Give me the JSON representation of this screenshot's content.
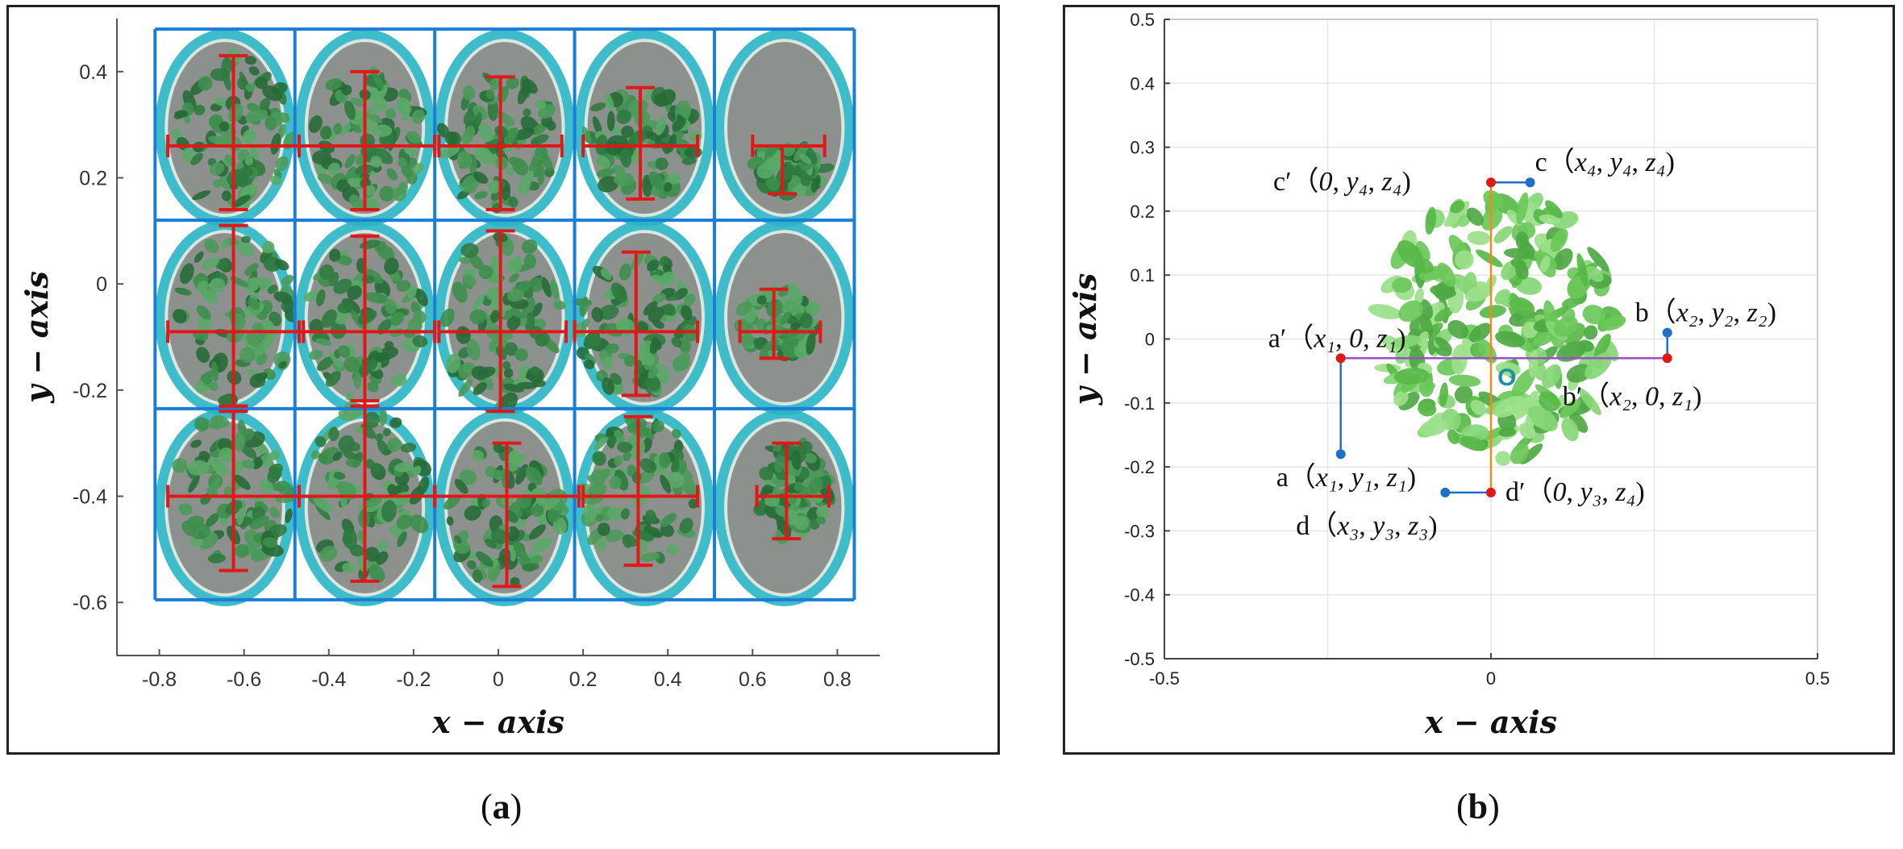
{
  "panels": {
    "a": {
      "caption_open": "(",
      "caption_letter": "a",
      "caption_close": ")"
    },
    "b": {
      "caption_open": "(",
      "caption_letter": "b",
      "caption_close": ")"
    }
  },
  "chart_data": [
    {
      "type": "scatter",
      "panel": "a",
      "title": "",
      "xlabel": "x − axis",
      "ylabel": "y − axis",
      "xlim": [
        -0.9,
        0.9
      ],
      "ylim": [
        -0.7,
        0.5
      ],
      "xticks": [
        -0.8,
        -0.6,
        -0.4,
        -0.2,
        0,
        0.2,
        0.4,
        0.6,
        0.8
      ],
      "xtick_labels": [
        "-0.8",
        "-0.6",
        "-0.4",
        "-0.2",
        "0",
        "0.2",
        "0.4",
        "0.6",
        "0.8"
      ],
      "yticks": [
        0.4,
        0.2,
        0,
        -0.2,
        -0.4,
        -0.6
      ],
      "ytick_labels": [
        "0.4",
        "0.2",
        "0",
        "-0.2",
        "-0.4",
        "-0.6"
      ],
      "grid": false,
      "grid_region": {
        "x_bounds": [
          -0.81,
          -0.48,
          -0.15,
          0.18,
          0.51,
          0.84
        ],
        "y_bounds": [
          0.48,
          0.12,
          -0.235,
          -0.595
        ],
        "color": "#1a7fd4"
      },
      "pots": [
        {
          "row": 0,
          "col": 0,
          "cx": -0.625,
          "cy": 0.26,
          "x_extent": [
            -0.78,
            -0.47
          ],
          "y_extent": [
            0.14,
            0.43
          ]
        },
        {
          "row": 0,
          "col": 1,
          "cx": -0.315,
          "cy": 0.26,
          "x_extent": [
            -0.47,
            -0.15
          ],
          "y_extent": [
            0.14,
            0.4
          ]
        },
        {
          "row": 0,
          "col": 2,
          "cx": 0.005,
          "cy": 0.26,
          "x_extent": [
            -0.14,
            0.15
          ],
          "y_extent": [
            0.14,
            0.39
          ]
        },
        {
          "row": 0,
          "col": 3,
          "cx": 0.335,
          "cy": 0.26,
          "x_extent": [
            0.2,
            0.47
          ],
          "y_extent": [
            0.16,
            0.37
          ]
        },
        {
          "row": 0,
          "col": 4,
          "cx": 0.67,
          "cy": 0.26,
          "x_extent": [
            0.6,
            0.77
          ],
          "y_extent": [
            0.17,
            0.26
          ]
        },
        {
          "row": 1,
          "col": 0,
          "cx": -0.625,
          "cy": -0.09,
          "x_extent": [
            -0.78,
            -0.46
          ],
          "y_extent": [
            -0.23,
            0.11
          ]
        },
        {
          "row": 1,
          "col": 1,
          "cx": -0.315,
          "cy": -0.09,
          "x_extent": [
            -0.47,
            -0.15
          ],
          "y_extent": [
            -0.23,
            0.09
          ]
        },
        {
          "row": 1,
          "col": 2,
          "cx": 0.005,
          "cy": -0.09,
          "x_extent": [
            -0.14,
            0.16
          ],
          "y_extent": [
            -0.24,
            0.1
          ]
        },
        {
          "row": 1,
          "col": 3,
          "cx": 0.325,
          "cy": -0.09,
          "x_extent": [
            0.18,
            0.47
          ],
          "y_extent": [
            -0.21,
            0.06
          ]
        },
        {
          "row": 1,
          "col": 4,
          "cx": 0.65,
          "cy": -0.09,
          "x_extent": [
            0.57,
            0.76
          ],
          "y_extent": [
            -0.14,
            -0.01
          ]
        },
        {
          "row": 2,
          "col": 0,
          "cx": -0.625,
          "cy": -0.4,
          "x_extent": [
            -0.78,
            -0.47
          ],
          "y_extent": [
            -0.54,
            -0.24
          ]
        },
        {
          "row": 2,
          "col": 1,
          "cx": -0.315,
          "cy": -0.4,
          "x_extent": [
            -0.47,
            -0.15
          ],
          "y_extent": [
            -0.56,
            -0.22
          ]
        },
        {
          "row": 2,
          "col": 2,
          "cx": 0.02,
          "cy": -0.4,
          "x_extent": [
            -0.15,
            0.19
          ],
          "y_extent": [
            -0.57,
            -0.3
          ]
        },
        {
          "row": 2,
          "col": 3,
          "cx": 0.33,
          "cy": -0.4,
          "x_extent": [
            0.2,
            0.47
          ],
          "y_extent": [
            -0.53,
            -0.25
          ]
        },
        {
          "row": 2,
          "col": 4,
          "cx": 0.68,
          "cy": -0.4,
          "x_extent": [
            0.61,
            0.78
          ],
          "y_extent": [
            -0.48,
            -0.3
          ]
        }
      ],
      "colors": {
        "frame": "#1a7fd4",
        "crosshair": "#e01818",
        "pot_rim": "#2bb5c4",
        "foliage": "#3d8f4e",
        "soil": "#4a4a48"
      }
    },
    {
      "type": "scatter",
      "panel": "b",
      "title": "",
      "xlabel": "x − axis",
      "ylabel": "y − axis",
      "xlim": [
        -0.5,
        0.5
      ],
      "ylim": [
        -0.5,
        0.5
      ],
      "xticks": [
        -0.5,
        0,
        0.5
      ],
      "xtick_labels": [
        "-0.5",
        "0",
        "0.5"
      ],
      "yticks": [
        0.5,
        0.4,
        0.3,
        0.2,
        0.1,
        0,
        -0.1,
        -0.2,
        -0.3,
        -0.4,
        -0.5
      ],
      "ytick_labels": [
        "0.5",
        "0.4",
        "0.3",
        "0.2",
        "0.1",
        "0",
        "-0.1",
        "-0.2",
        "-0.3",
        "-0.4",
        "-0.5"
      ],
      "grid": true,
      "points": [
        {
          "id": "a",
          "label": "a",
          "coords": [
            "x₁",
            "y₁",
            "z₁"
          ],
          "x": -0.23,
          "y": -0.18,
          "color": "#1f6fc4"
        },
        {
          "id": "a'",
          "label": "a′",
          "coords": [
            "x₁",
            "0",
            "z₁"
          ],
          "x": -0.23,
          "y": -0.03,
          "color": "#e01818"
        },
        {
          "id": "b",
          "label": "b",
          "coords": [
            "x₂",
            "y₂",
            "z₂"
          ],
          "x": 0.27,
          "y": 0.01,
          "color": "#1f6fc4"
        },
        {
          "id": "b'",
          "label": "b′",
          "coords": [
            "x₂",
            "0",
            "z₁"
          ],
          "x": 0.27,
          "y": -0.03,
          "color": "#e01818"
        },
        {
          "id": "c",
          "label": "c",
          "coords": [
            "x₄",
            "y₄",
            "z₄"
          ],
          "x": 0.06,
          "y": 0.245,
          "color": "#1f6fc4"
        },
        {
          "id": "c'",
          "label": "c′",
          "coords": [
            "0",
            "y₄",
            "z₄"
          ],
          "x": 0.0,
          "y": 0.245,
          "color": "#e01818"
        },
        {
          "id": "d",
          "label": "d",
          "coords": [
            "x₃",
            "y₃",
            "z₃"
          ],
          "x": -0.07,
          "y": -0.24,
          "color": "#1f6fc4"
        },
        {
          "id": "d'",
          "label": "d′",
          "coords": [
            "0",
            "y₃",
            "z₄"
          ],
          "x": 0.0,
          "y": -0.24,
          "color": "#e01818"
        }
      ],
      "lines": [
        {
          "from": "a'",
          "to": "b'",
          "color": "#9b4fc4"
        },
        {
          "from": "c'",
          "to": "d'",
          "color": "#f08a1a"
        },
        {
          "from": "a",
          "to": "a'",
          "color": "#1f6fc4"
        },
        {
          "from": "b",
          "to": "b'",
          "color": "#1f6fc4"
        },
        {
          "from": "c",
          "to": "c'",
          "color": "#1f6fc4"
        },
        {
          "from": "d",
          "to": "d'",
          "color": "#1f6fc4"
        }
      ],
      "origin_label": "O",
      "origin": {
        "x": 0.01,
        "y": -0.06
      },
      "plant_extent": {
        "x": [
          -0.17,
          0.19
        ],
        "y": [
          -0.19,
          0.23
        ]
      },
      "colors": {
        "origin": "#1a90a8",
        "foliage": "#6cc85a",
        "grid": "#e6e6e6"
      }
    }
  ]
}
